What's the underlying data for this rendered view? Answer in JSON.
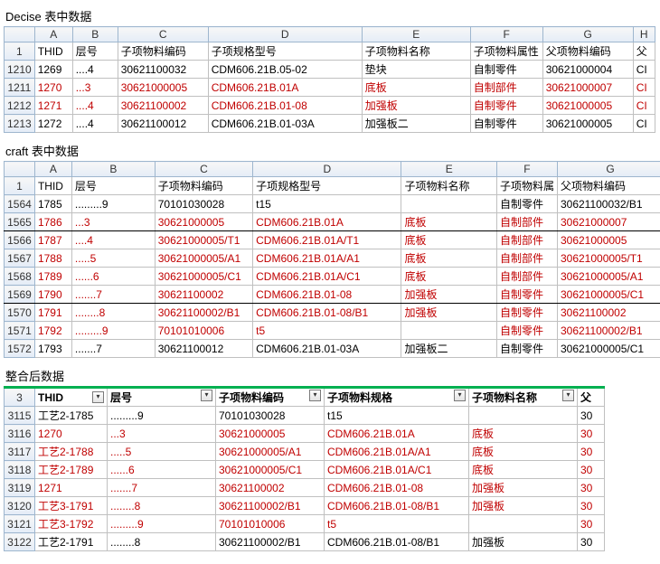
{
  "titles": {
    "decise": "Decise 表中数据",
    "craft": "craft 表中数据",
    "merged": "整合后数据"
  },
  "colors": {
    "red": "#c00000",
    "black": "#000000",
    "headerBg": "#e4ecf7",
    "green": "#00b050"
  },
  "decise": {
    "colLetters": [
      "",
      "A",
      "B",
      "C",
      "D",
      "E",
      "F",
      "G",
      "H"
    ],
    "headerRow": "1",
    "headers": [
      "THID",
      "层号",
      "子项物料编码",
      "子项规格型号",
      "子项物料名称",
      "子项物料属性",
      "父项物料编码",
      "父"
    ],
    "rows": [
      {
        "n": "1210",
        "c": "black",
        "d": [
          "1269",
          "....4",
          "30621100032",
          "CDM606.21B.05-02",
          "垫块",
          "自制零件",
          "30621000004",
          "CI"
        ]
      },
      {
        "n": "1211",
        "c": "red",
        "d": [
          "1270",
          "...3",
          "30621000005",
          "CDM606.21B.01A",
          "底板",
          "自制部件",
          "30621000007",
          "CI"
        ]
      },
      {
        "n": "1212",
        "c": "red",
        "d": [
          "1271",
          "....4",
          "30621100002",
          "CDM606.21B.01-08",
          "加强板",
          "自制零件",
          "30621000005",
          "CI"
        ]
      },
      {
        "n": "1213",
        "c": "black",
        "d": [
          "1272",
          "....4",
          "30621100012",
          "CDM606.21B.01-03A",
          "加强板二",
          "自制零件",
          "30621000005",
          "CI"
        ]
      }
    ]
  },
  "craft": {
    "colLetters": [
      "",
      "A",
      "B",
      "C",
      "D",
      "E",
      "F",
      "G"
    ],
    "headerRow": "1",
    "headers": [
      "THID",
      "层号",
      "子项物料编码",
      "子项规格型号",
      "子项物料名称",
      "子项物料属",
      "父项物料编码"
    ],
    "widths": [
      34,
      42,
      100,
      110,
      170,
      110,
      60,
      120
    ],
    "rows": [
      {
        "n": "1564",
        "c": "black",
        "d": [
          "1785",
          ".........9",
          "70101030028",
          "t15",
          "",
          "自制零件",
          "30621100032/B1"
        ]
      },
      {
        "n": "1565",
        "c": "red",
        "underline": true,
        "d": [
          "1786",
          "...3",
          "30621000005",
          "CDM606.21B.01A",
          "底板",
          "自制部件",
          "30621000007"
        ]
      },
      {
        "n": "1566",
        "c": "red",
        "d": [
          "1787",
          "....4",
          "30621000005/T1",
          "CDM606.21B.01A/T1",
          "底板",
          "自制部件",
          "30621000005"
        ]
      },
      {
        "n": "1567",
        "c": "red",
        "d": [
          "1788",
          ".....5",
          "30621000005/A1",
          "CDM606.21B.01A/A1",
          "底板",
          "自制部件",
          "30621000005/T1"
        ]
      },
      {
        "n": "1568",
        "c": "red",
        "d": [
          "1789",
          "......6",
          "30621000005/C1",
          "CDM606.21B.01A/C1",
          "底板",
          "自制部件",
          "30621000005/A1"
        ]
      },
      {
        "n": "1569",
        "c": "red",
        "underline": true,
        "d": [
          "1790",
          ".......7",
          "30621100002",
          "CDM606.21B.01-08",
          "加强板",
          "自制零件",
          "30621000005/C1"
        ]
      },
      {
        "n": "1570",
        "c": "red",
        "d": [
          "1791",
          "........8",
          "30621100002/B1",
          "CDM606.21B.01-08/B1",
          "加强板",
          "自制零件",
          "30621100002"
        ]
      },
      {
        "n": "1571",
        "c": "red",
        "d": [
          "1792",
          ".........9",
          "70101010006",
          "t5",
          "",
          "自制零件",
          "30621100002/B1"
        ]
      },
      {
        "n": "1572",
        "c": "black",
        "d": [
          "1793",
          ".......7",
          "30621100012",
          "CDM606.21B.01-03A",
          "加强板二",
          "自制零件",
          "30621000005/C1"
        ]
      }
    ]
  },
  "merged": {
    "headerRow": "3",
    "headers": [
      "THID",
      "层号",
      "子项物料编码",
      "子项物料规格",
      "子项物料名称",
      "父"
    ],
    "widths": [
      34,
      80,
      120,
      120,
      160,
      120,
      30
    ],
    "rows": [
      {
        "n": "3115",
        "c": "black",
        "d": [
          "工艺2-1785",
          ".........9",
          "70101030028",
          "t15",
          "",
          "30"
        ]
      },
      {
        "n": "3116",
        "c": "red",
        "d": [
          "1270",
          "...3",
          "30621000005",
          "CDM606.21B.01A",
          "底板",
          "30"
        ]
      },
      {
        "n": "3117",
        "c": "red",
        "d": [
          "工艺2-1788",
          ".....5",
          "30621000005/A1",
          "CDM606.21B.01A/A1",
          "底板",
          "30"
        ]
      },
      {
        "n": "3118",
        "c": "red",
        "d": [
          "工艺2-1789",
          "......6",
          "30621000005/C1",
          "CDM606.21B.01A/C1",
          "底板",
          "30"
        ]
      },
      {
        "n": "3119",
        "c": "red",
        "d": [
          "1271",
          ".......7",
          "30621100002",
          "CDM606.21B.01-08",
          "加强板",
          "30"
        ]
      },
      {
        "n": "3120",
        "c": "red",
        "d": [
          "工艺3-1791",
          "........8",
          "30621100002/B1",
          "CDM606.21B.01-08/B1",
          "加强板",
          "30"
        ]
      },
      {
        "n": "3121",
        "c": "red",
        "d": [
          "工艺3-1792",
          ".........9",
          "70101010006",
          "t5",
          "",
          "30"
        ]
      },
      {
        "n": "3122",
        "c": "black",
        "d": [
          "工艺2-1791",
          "........8",
          "30621100002/B1",
          "CDM606.21B.01-08/B1",
          "加强板",
          "30"
        ]
      }
    ]
  }
}
